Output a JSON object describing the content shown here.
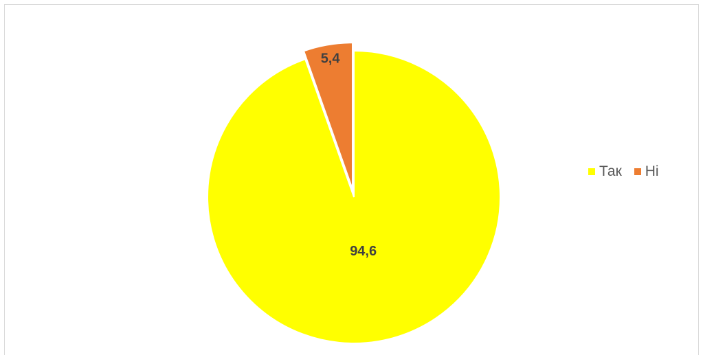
{
  "chart_data": {
    "type": "pie",
    "title": "",
    "categories": [
      "Так",
      "Ні"
    ],
    "values": [
      94.6,
      5.4
    ],
    "value_labels": [
      "94,6",
      "5,4"
    ],
    "colors": [
      "#ffff00",
      "#ed7d31"
    ],
    "exploded": [
      false,
      true
    ],
    "legend_position": "right"
  }
}
